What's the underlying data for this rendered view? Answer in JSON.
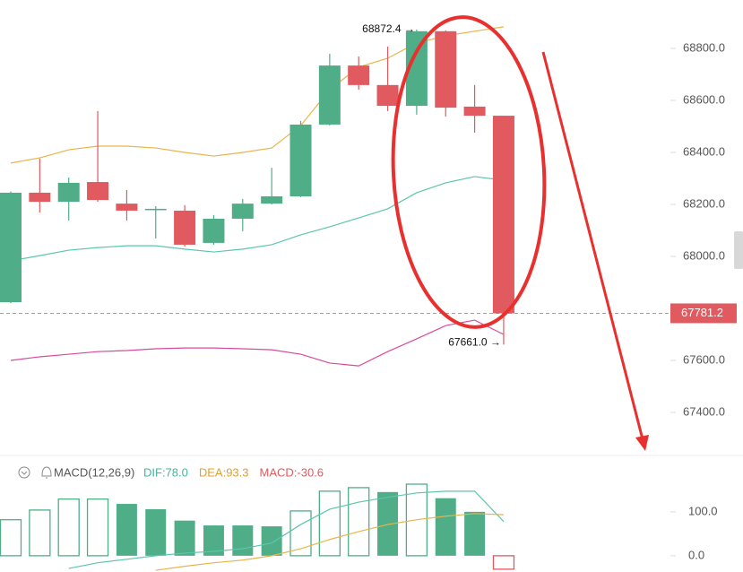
{
  "chart_data": [
    {
      "type": "candlestick",
      "open": [
        67824,
        68245,
        68210,
        68286,
        68203,
        68179,
        68176,
        68052,
        68145,
        68203,
        68231,
        68507,
        68734,
        68659,
        68579,
        68866,
        68576,
        68541
      ],
      "high": [
        68250,
        68376,
        68303,
        68559,
        68255,
        68193,
        68197,
        68159,
        68221,
        68341,
        68521,
        68779,
        68769,
        68807,
        68872.4,
        68869,
        68659,
        68541
      ],
      "low": [
        67820,
        68169,
        68138,
        68210,
        68138,
        68069,
        68038,
        68045,
        68097,
        68200,
        68228,
        68503,
        68641,
        68559,
        68545,
        68538,
        68476,
        67661
      ],
      "close": [
        68245,
        68210,
        68283,
        68217,
        68176,
        68183,
        68045,
        68145,
        68203,
        68231,
        68507,
        68734,
        68659,
        68579,
        68866,
        68572,
        68541,
        67781.2
      ],
      "up_color": "#4fae88",
      "down_color": "#e05a5f",
      "overlays": [
        {
          "color": "#e9b44c",
          "values": [
            68359,
            68379,
            68410,
            68424,
            68424,
            68417,
            68400,
            68386,
            68400,
            68417,
            68503,
            68641,
            68728,
            68762,
            68821,
            68848,
            68866,
            68883
          ]
        },
        {
          "color": "#5cc6ad",
          "values": [
            67983,
            68003,
            68024,
            68034,
            68041,
            68041,
            68028,
            68017,
            68028,
            68045,
            68083,
            68114,
            68148,
            68183,
            68245,
            68283,
            68307,
            68293
          ]
        },
        {
          "color": "#d94a9a",
          "values": [
            67600,
            67614,
            67624,
            67634,
            67638,
            67645,
            67648,
            67648,
            67645,
            67641,
            67624,
            67590,
            67579,
            67634,
            67683,
            67734,
            67755,
            67700
          ]
        }
      ],
      "ylim": [
        67245,
        68986
      ],
      "yticks": [
        {
          "value": 68800,
          "label": "68800.0"
        },
        {
          "value": 68600,
          "label": "68600.0"
        },
        {
          "value": 68400,
          "label": "68400.0"
        },
        {
          "value": 68200,
          "label": "68200.0"
        },
        {
          "value": 68000,
          "label": "68000.0"
        },
        {
          "value": 67600,
          "label": "67600.0"
        },
        {
          "value": 67400,
          "label": "67400.0"
        }
      ],
      "last_price": 67781.2,
      "last_price_color": "#e05a5f",
      "high_label": {
        "value": 68872.4,
        "label": "68872.4 →"
      },
      "low_label": {
        "value": 67661,
        "label": "67661.0 →"
      }
    },
    {
      "type": "macd",
      "title": "MACD(12,26,9)",
      "legend": [
        {
          "label": "DIF:78.0",
          "color": "#3fb8a0"
        },
        {
          "label": "DEA:93.3",
          "color": "#e0a030"
        },
        {
          "label": "MACD:-30.6",
          "color": "#e05a5f"
        }
      ],
      "histogram": [
        82,
        104,
        129,
        129,
        118,
        106,
        80,
        69,
        69,
        67,
        102,
        147,
        155,
        145,
        163,
        131,
        100,
        -30.6
      ],
      "hollow": [
        true,
        true,
        true,
        true,
        false,
        false,
        false,
        false,
        false,
        false,
        true,
        true,
        true,
        false,
        true,
        false,
        false,
        true
      ],
      "up_color": "#4fae88",
      "down_color": "#e05a5f",
      "series": [
        {
          "color": "#5cc6ad",
          "values": [
            null,
            null,
            -29,
            -16,
            -8,
            0,
            6,
            10,
            16,
            29,
            71,
            106,
            122,
            133,
            143,
            147,
            147,
            78
          ]
        },
        {
          "color": "#e9b44c",
          "values": [
            null,
            null,
            null,
            null,
            null,
            -33,
            -24,
            -16,
            -10,
            0,
            16,
            37,
            55,
            71,
            82,
            90,
            96,
            93.3
          ]
        }
      ],
      "ylim": [
        -37,
        163
      ],
      "yticks": [
        {
          "value": 100,
          "label": "100.0"
        },
        {
          "value": 0,
          "label": "0.0"
        }
      ]
    }
  ]
}
